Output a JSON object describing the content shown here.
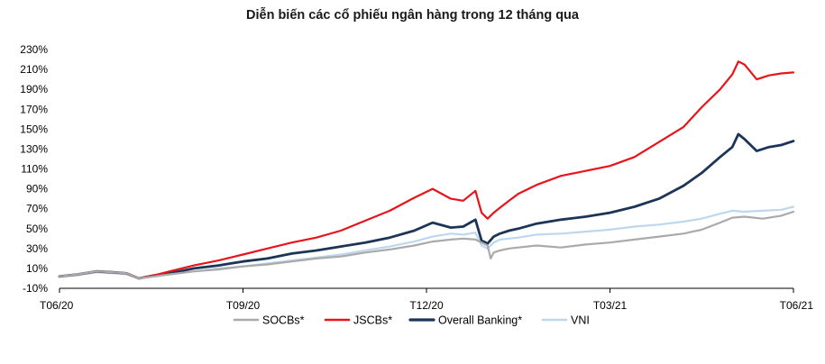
{
  "chart_data": {
    "type": "line",
    "title": "Diễn biến các cổ phiếu ngân hàng trong 12 tháng qua",
    "y_unit": "%",
    "ylim": [
      -10,
      230
    ],
    "y_ticks": [
      -10,
      10,
      30,
      50,
      70,
      90,
      110,
      130,
      150,
      170,
      190,
      210,
      230
    ],
    "y_tick_labels": [
      "-10%",
      "10%",
      "30%",
      "50%",
      "70%",
      "90%",
      "110%",
      "130%",
      "150%",
      "170%",
      "190%",
      "210%",
      "230%"
    ],
    "x_ticks": [
      0,
      3,
      6,
      9,
      12
    ],
    "x_tick_labels": [
      "T06/20",
      "T09/20",
      "T12/20",
      "T03/21",
      "T06/21"
    ],
    "xlim": [
      0,
      12
    ],
    "grid": false,
    "legend_position": "bottom",
    "series": [
      {
        "name": "SOCBs*",
        "color": "#aaaaaa",
        "width": 2.2,
        "x": [
          0,
          0.3,
          0.6,
          0.9,
          1.1,
          1.3,
          1.55,
          1.8,
          2.2,
          2.6,
          3.0,
          3.4,
          3.8,
          4.2,
          4.6,
          5.0,
          5.4,
          5.8,
          6.1,
          6.4,
          6.6,
          6.8,
          7.0,
          7.05,
          7.1,
          7.2,
          7.35,
          7.5,
          7.8,
          8.2,
          8.6,
          9.0,
          9.4,
          9.8,
          10.2,
          10.5,
          10.8,
          11.0,
          11.2,
          11.5,
          11.8,
          12.0
        ],
        "y": [
          2,
          4,
          7,
          6,
          5,
          0,
          2,
          4,
          7,
          9,
          12,
          14,
          17,
          20,
          22,
          26,
          29,
          33,
          37,
          39,
          40,
          39,
          33,
          20,
          26,
          28,
          30,
          31,
          33,
          31,
          34,
          36,
          39,
          42,
          45,
          49,
          56,
          61,
          62,
          60,
          63,
          67
        ]
      },
      {
        "name": "JSCBs*",
        "color": "#e8141b",
        "width": 2.2,
        "x": [
          0,
          0.3,
          0.6,
          0.9,
          1.1,
          1.3,
          1.55,
          1.8,
          2.2,
          2.6,
          3.0,
          3.4,
          3.8,
          4.2,
          4.6,
          5.0,
          5.4,
          5.8,
          6.1,
          6.4,
          6.6,
          6.8,
          6.9,
          7.0,
          7.1,
          7.2,
          7.35,
          7.5,
          7.8,
          8.2,
          8.6,
          9.0,
          9.4,
          9.8,
          10.2,
          10.5,
          10.8,
          11.0,
          11.1,
          11.2,
          11.4,
          11.6,
          11.8,
          12.0
        ],
        "y": [
          2,
          4,
          7,
          6,
          5,
          0,
          3,
          7,
          13,
          18,
          24,
          30,
          36,
          41,
          48,
          58,
          68,
          81,
          90,
          80,
          78,
          88,
          66,
          60,
          66,
          71,
          78,
          85,
          94,
          103,
          108,
          113,
          122,
          137,
          152,
          172,
          190,
          205,
          218,
          215,
          200,
          204,
          206,
          207
        ]
      },
      {
        "name": "Overall Banking*",
        "color": "#1c3557",
        "width": 2.8,
        "x": [
          0,
          0.3,
          0.6,
          0.9,
          1.1,
          1.3,
          1.55,
          1.8,
          2.2,
          2.6,
          3.0,
          3.4,
          3.8,
          4.2,
          4.6,
          5.0,
          5.4,
          5.8,
          6.1,
          6.4,
          6.6,
          6.8,
          6.9,
          7.0,
          7.1,
          7.2,
          7.35,
          7.5,
          7.8,
          8.2,
          8.6,
          9.0,
          9.4,
          9.8,
          10.2,
          10.5,
          10.8,
          11.0,
          11.1,
          11.2,
          11.4,
          11.6,
          11.8,
          12.0
        ],
        "y": [
          2,
          4,
          7,
          6,
          5,
          0,
          3,
          5,
          10,
          13,
          17,
          20,
          25,
          28,
          32,
          36,
          41,
          48,
          56,
          51,
          52,
          59,
          38,
          35,
          42,
          45,
          48,
          50,
          55,
          59,
          62,
          66,
          72,
          80,
          93,
          106,
          122,
          132,
          145,
          140,
          128,
          132,
          134,
          138
        ]
      },
      {
        "name": "VNI",
        "color": "#bdd7ee",
        "width": 2.2,
        "x": [
          0,
          0.3,
          0.6,
          0.9,
          1.1,
          1.3,
          1.55,
          1.8,
          2.2,
          2.6,
          3.0,
          3.4,
          3.8,
          4.2,
          4.6,
          5.0,
          5.4,
          5.8,
          6.1,
          6.4,
          6.6,
          6.8,
          6.9,
          7.0,
          7.1,
          7.2,
          7.35,
          7.5,
          7.8,
          8.2,
          8.6,
          9.0,
          9.4,
          9.8,
          10.2,
          10.5,
          10.8,
          11.0,
          11.2,
          11.5,
          11.8,
          12.0
        ],
        "y": [
          2,
          3,
          6,
          5,
          4,
          0,
          2,
          4,
          7,
          10,
          12,
          15,
          18,
          21,
          24,
          28,
          32,
          37,
          42,
          45,
          44,
          46,
          33,
          30,
          36,
          39,
          40,
          41,
          44,
          45,
          47,
          49,
          52,
          54,
          57,
          60,
          65,
          68,
          67,
          68,
          69,
          72
        ]
      }
    ]
  }
}
